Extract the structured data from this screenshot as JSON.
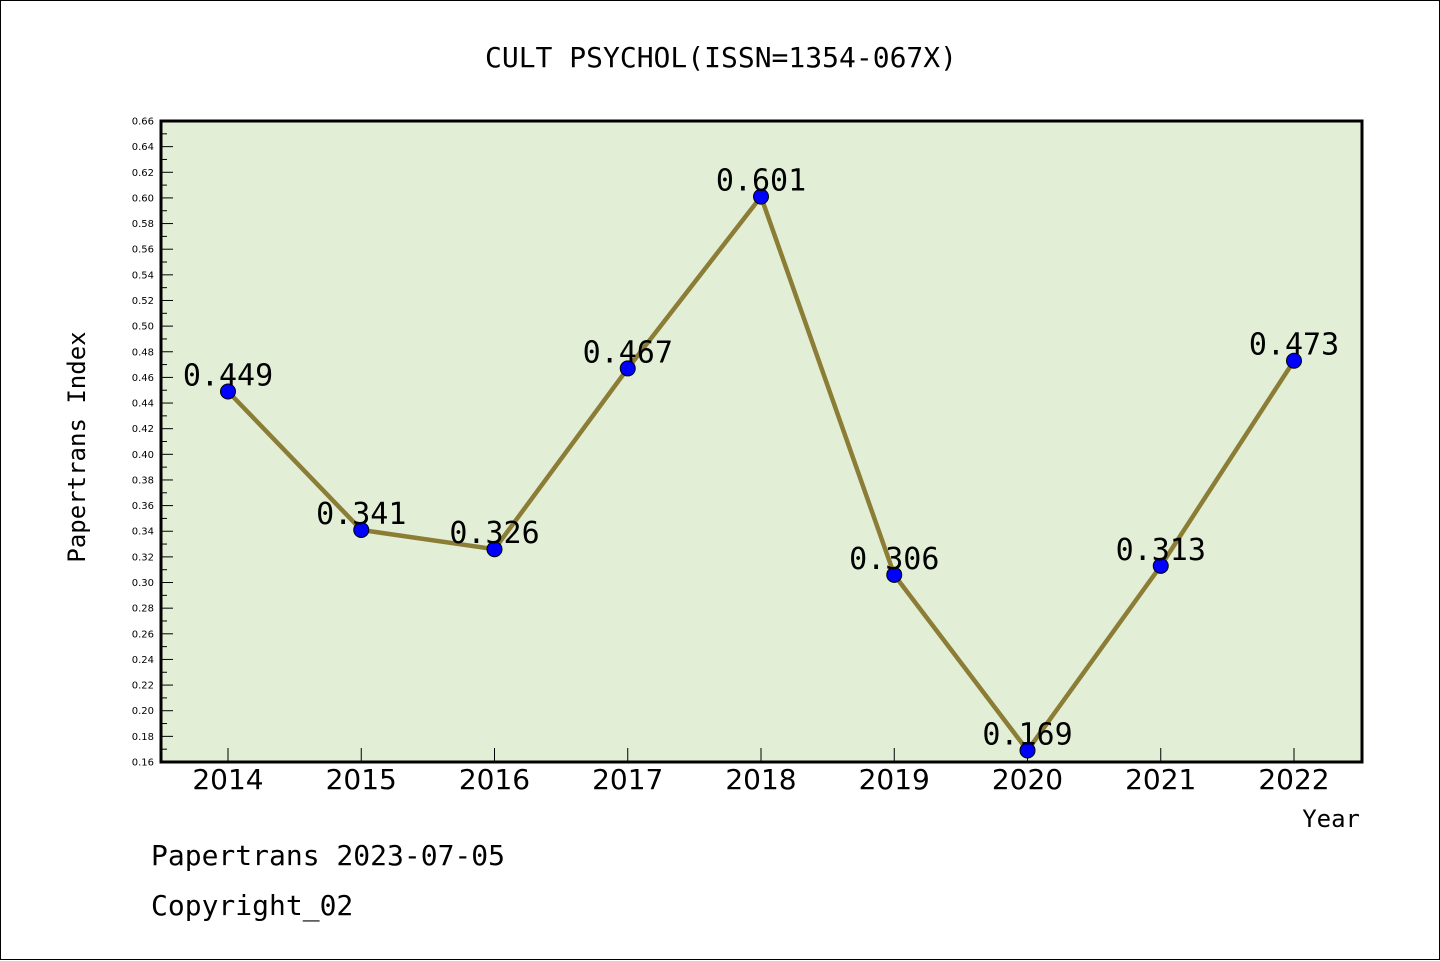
{
  "chart_data": {
    "type": "line",
    "title": "CULT PSYCHOL(ISSN=1354-067X)",
    "xlabel": "Year",
    "ylabel": "Papertrans Index",
    "categories": [
      "2014",
      "2015",
      "2016",
      "2017",
      "2018",
      "2019",
      "2020",
      "2021",
      "2022"
    ],
    "values": [
      0.449,
      0.341,
      0.326,
      0.467,
      0.601,
      0.306,
      0.169,
      0.313,
      0.473
    ],
    "value_labels": [
      "0.449",
      "0.341",
      "0.326",
      "0.467",
      "0.601",
      "0.306",
      "0.169",
      "0.313",
      "0.473"
    ],
    "ylim": [
      0.16,
      0.66
    ],
    "yticks": [
      "0.16",
      "0.18",
      "0.20",
      "0.22",
      "0.24",
      "0.26",
      "0.28",
      "0.30",
      "0.32",
      "0.34",
      "0.36",
      "0.38",
      "0.40",
      "0.42",
      "0.44",
      "0.46",
      "0.48",
      "0.50",
      "0.52",
      "0.54",
      "0.56",
      "0.58",
      "0.60",
      "0.62",
      "0.64",
      "0.66"
    ],
    "grid": false,
    "colors": {
      "plot_background": "#e2efd6",
      "line": "#8b7d35",
      "marker": "#0000ff"
    }
  },
  "footer": {
    "date_line": "Papertrans 2023-07-05",
    "copyright": "Copyright_02"
  }
}
